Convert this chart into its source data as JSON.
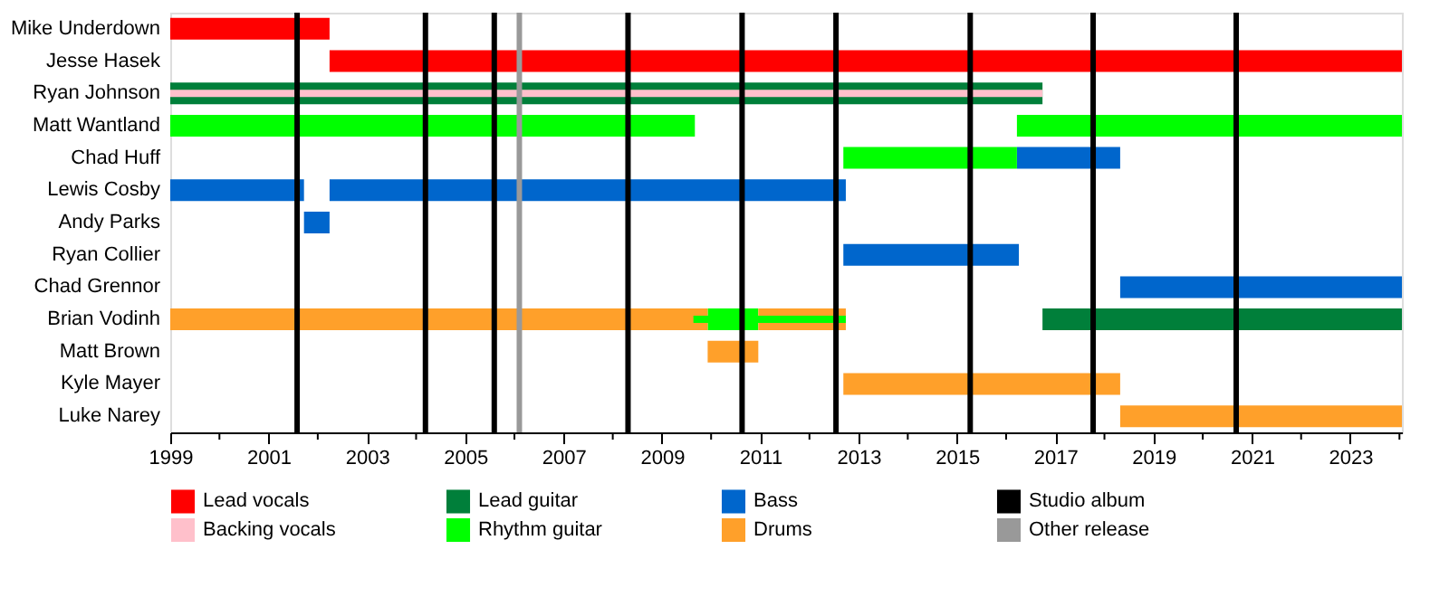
{
  "chart_data": {
    "type": "bar",
    "orientation": "horizontal",
    "legend": "bottom",
    "categories": [
      "Mike Underdown",
      "Jesse Hasek",
      "Ryan Johnson",
      "Matt Wantland",
      "Chad Huff",
      "Lewis Cosby",
      "Andy Parks",
      "Ryan Collier",
      "Chad Grennor",
      "Brian Vodinh",
      "Matt Brown",
      "Kyle Mayer",
      "Luke Narey"
    ],
    "xlim": [
      1999,
      2024.05
    ],
    "xticks": [
      1999,
      {
        "value": 2000,
        "label": null
      },
      2001,
      {
        "value": 2002,
        "label": null
      },
      2003,
      {
        "value": 2004,
        "label": null
      },
      2005,
      {
        "value": 2006,
        "label": null
      },
      2007,
      {
        "value": 2008,
        "label": null
      },
      2009,
      {
        "value": 2010,
        "label": null
      },
      2011,
      {
        "value": 2012,
        "label": null
      },
      2013,
      {
        "value": 2014,
        "label": null
      },
      2015,
      {
        "value": 2016,
        "label": null
      },
      2017,
      {
        "value": 2018,
        "label": null
      },
      2019,
      {
        "value": 2020,
        "label": null
      },
      2021,
      {
        "value": 2022,
        "label": null
      },
      2023,
      {
        "value": 2024,
        "label": null
      }
    ],
    "series": [
      {
        "name": "Lead vocals",
        "color": "#ff0000",
        "values": [
          3.24,
          21.81,
          null,
          null,
          null,
          null,
          null,
          null,
          null,
          null,
          null,
          null,
          null
        ],
        "base": [
          1999,
          2002.24,
          null,
          null,
          null,
          null,
          null,
          null,
          null,
          null,
          null,
          null,
          null
        ]
      },
      {
        "name": "Lead guitar",
        "color": "#007f3a",
        "values": [
          null,
          null,
          17.74,
          null,
          null,
          null,
          null,
          null,
          null,
          7.31,
          null,
          null,
          null
        ],
        "base": [
          null,
          null,
          1999,
          null,
          null,
          null,
          null,
          null,
          null,
          2016.74,
          null,
          null,
          null
        ]
      },
      {
        "name": "Bass",
        "color": "#0066cc",
        "values": [
          null,
          null,
          null,
          null,
          2.1,
          2.72,
          0.52,
          3.57,
          5.73,
          null,
          null,
          null,
          null
        ],
        "base": [
          null,
          null,
          null,
          null,
          2016.22,
          1999,
          2001.72,
          2012.69,
          2018.32,
          null,
          null,
          null,
          null
        ]
      },
      {
        "name": "Backing vocals",
        "color": "#ffc0cb",
        "values": [
          null,
          null,
          17.74,
          null,
          null,
          null,
          null,
          null,
          null,
          null,
          null,
          null,
          null
        ],
        "base": [
          null,
          null,
          1999,
          null,
          null,
          null,
          null,
          null,
          null,
          null,
          null,
          null,
          null
        ]
      },
      {
        "name": "Rhythm guitar",
        "color": "#00ff00",
        "values": [
          null,
          null,
          null,
          10.67,
          3.53,
          null,
          null,
          null,
          null,
          1.03,
          null,
          null,
          null
        ],
        "base": [
          null,
          null,
          null,
          1999,
          2012.69,
          null,
          null,
          null,
          null,
          2009.93,
          null,
          null,
          null
        ]
      },
      {
        "name": "Drums",
        "color": "#ffa02a",
        "values": [
          null,
          null,
          null,
          null,
          null,
          null,
          null,
          null,
          null,
          10.93,
          1.03,
          5.63,
          5.73
        ],
        "base": [
          null,
          null,
          null,
          null,
          null,
          null,
          null,
          null,
          null,
          1999,
          2009.93,
          2012.69,
          2018.32
        ]
      },
      {
        "color": "#0066cc",
        "values": [
          null,
          null,
          null,
          null,
          null,
          10.5,
          null,
          null,
          null,
          null,
          null,
          null,
          null
        ],
        "base": [
          null,
          null,
          null,
          null,
          null,
          2002.24,
          null,
          null,
          null,
          null,
          null,
          null,
          null
        ]
      },
      {
        "color": "#00ff00",
        "values": [
          null,
          null,
          null,
          7.83,
          null,
          null,
          null,
          null,
          null,
          null,
          null,
          null,
          null
        ],
        "base": [
          null,
          null,
          null,
          2016.22,
          null,
          null,
          null,
          null,
          null,
          null,
          null,
          null,
          null
        ]
      },
      {
        "color": "#ffa02a",
        "values": [
          null,
          null,
          null,
          null,
          null,
          null,
          null,
          null,
          null,
          1.78,
          null,
          null,
          null
        ],
        "base": [
          null,
          null,
          null,
          null,
          null,
          null,
          null,
          null,
          null,
          2010.96,
          null,
          null,
          null
        ]
      },
      {
        "color": "#00ff00",
        "values": [
          null,
          null,
          null,
          null,
          null,
          null,
          null,
          null,
          null,
          3.1,
          null,
          null,
          null
        ],
        "base": [
          null,
          null,
          null,
          null,
          null,
          null,
          null,
          null,
          null,
          2009.64,
          null,
          null,
          null
        ]
      }
    ],
    "ref_lines": [
      {
        "axis": "x",
        "value": 2001.58,
        "label": "Studio album",
        "color": "#000000"
      },
      {
        "axis": "x",
        "value": 2004.19,
        "color": "#000000"
      },
      {
        "axis": "x",
        "value": 2005.59,
        "color": "#000000"
      },
      {
        "axis": "x",
        "value": 2008.31,
        "color": "#000000"
      },
      {
        "axis": "x",
        "value": 2010.63,
        "color": "#000000"
      },
      {
        "axis": "x",
        "value": 2012.54,
        "color": "#000000"
      },
      {
        "axis": "x",
        "value": 2015.27,
        "color": "#000000"
      },
      {
        "axis": "x",
        "value": 2017.77,
        "color": "#000000"
      },
      {
        "axis": "x",
        "value": 2020.68,
        "color": "#000000"
      },
      {
        "axis": "x",
        "value": 2006.1,
        "label": "Other release",
        "color": "#999999"
      }
    ]
  }
}
